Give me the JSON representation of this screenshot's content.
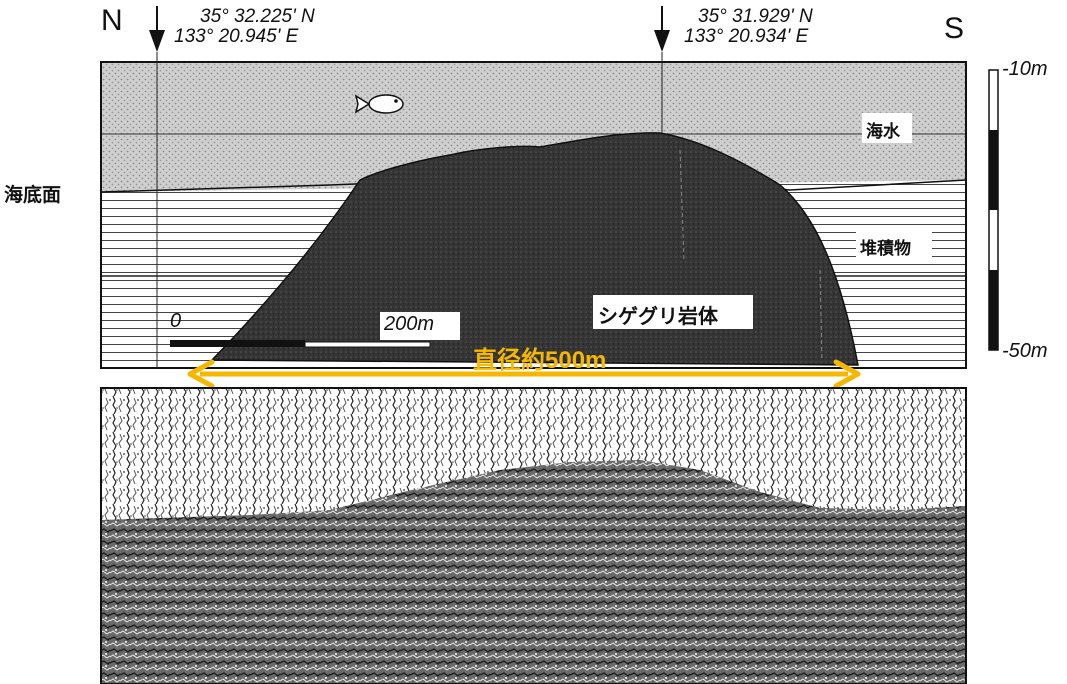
{
  "header": {
    "north_label": "N",
    "south_label": "S",
    "coord_left_lat": "35° 32.225' N",
    "coord_left_lon": "133° 20.945' E",
    "coord_right_lat": "35° 31.929' N",
    "coord_right_lon": "133° 20.934' E"
  },
  "cross_section": {
    "seawater_label": "海水",
    "sediment_label": "堆積物",
    "rock_label": "シゲグリ岩体",
    "seafloor_label": "海底面",
    "scale_zero": "0",
    "scale_label": "200m",
    "diameter_label": "直径約500m"
  },
  "depth_scale": {
    "top": "-10m",
    "bottom": "-50m"
  },
  "colors": {
    "rock": "#333333",
    "seawater": "#c8c8c8",
    "diameter_arrow": "#f5b700"
  },
  "icons": [
    "fish-icon",
    "down-arrow-icon"
  ]
}
